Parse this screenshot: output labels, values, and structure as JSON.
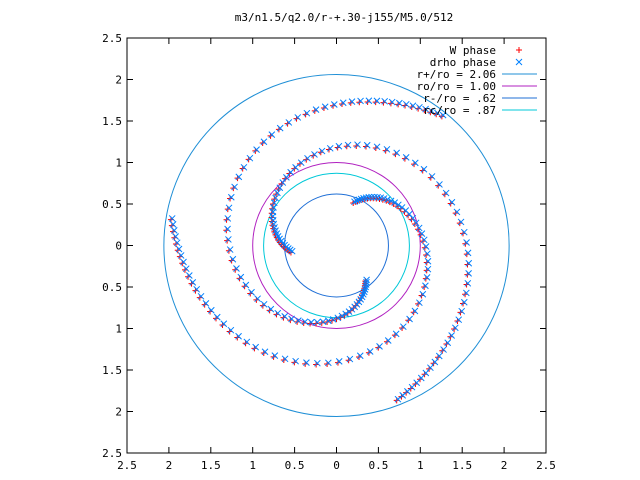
{
  "chart_data": {
    "type": "scatter",
    "title": "m3/n1.5/q2.0/r-+.30-j155/M5.0/512",
    "xlim": [
      -2.5,
      2.5
    ],
    "ylim": [
      -2.5,
      2.5
    ],
    "x_ticks": [
      {
        "value": -2.5,
        "label": "2.5"
      },
      {
        "value": -2,
        "label": "2"
      },
      {
        "value": -1.5,
        "label": "1.5"
      },
      {
        "value": -1,
        "label": "1"
      },
      {
        "value": -0.5,
        "label": "0.5"
      },
      {
        "value": 0,
        "label": "0"
      },
      {
        "value": 0.5,
        "label": "0.5"
      },
      {
        "value": 1,
        "label": "1"
      },
      {
        "value": 1.5,
        "label": "1.5"
      },
      {
        "value": 2,
        "label": "2"
      },
      {
        "value": 2.5,
        "label": "2.5"
      }
    ],
    "y_ticks": [
      {
        "value": 2.5,
        "label": "2.5"
      },
      {
        "value": 2,
        "label": "2"
      },
      {
        "value": 1.5,
        "label": "1.5"
      },
      {
        "value": 1,
        "label": "1"
      },
      {
        "value": 0.5,
        "label": "0.5"
      },
      {
        "value": 0,
        "label": "0"
      },
      {
        "value": -0.5,
        "label": "0.5"
      },
      {
        "value": -1,
        "label": "1"
      },
      {
        "value": -1.5,
        "label": "1.5"
      },
      {
        "value": -2,
        "label": "2"
      },
      {
        "value": -2.5,
        "label": "2.5"
      }
    ],
    "grid": false,
    "legend_position": "top-right",
    "series": [
      {
        "name": "W phase",
        "marker": "plus",
        "color": "#ff0000",
        "arms": [
          {
            "phase_deg": 0,
            "samples": 70
          },
          {
            "phase_deg": 120,
            "samples": 70
          },
          {
            "phase_deg": 240,
            "samples": 70
          }
        ]
      },
      {
        "name": "drho phase",
        "marker": "cross",
        "color": "#0080ff",
        "arms": [
          {
            "phase_deg": 0,
            "samples": 70
          },
          {
            "phase_deg": 120,
            "samples": 70
          },
          {
            "phase_deg": 240,
            "samples": 70
          }
        ]
      }
    ],
    "circles": [
      {
        "name": "r+/ro = 2.06",
        "radius": 2.06,
        "color": "#1f8fd6"
      },
      {
        "name": "ro/ro = 1.00",
        "radius": 1.0,
        "color": "#b020c0"
      },
      {
        "name": "r-/ro = .62",
        "radius": 0.62,
        "color": "#1f6fd6"
      },
      {
        "name": "rc/ro = .87",
        "radius": 0.87,
        "color": "#00c8d8"
      }
    ]
  }
}
